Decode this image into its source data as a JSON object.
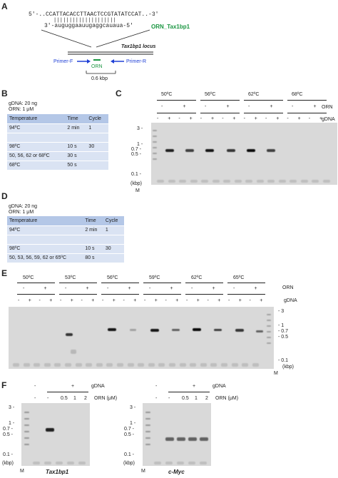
{
  "panels": {
    "A": "A",
    "B": "B",
    "C": "C",
    "D": "D",
    "E": "E",
    "F": "F"
  },
  "panelA": {
    "dna_top": "5'-..CCATTACACCTTAACTCCGTATATCCAT..-3'",
    "bars": "||||||||||||||||||||",
    "rna_bottom": "3'-auguggaauugaggcauaua-5'",
    "orn_label": "ORN_Tax1bp1",
    "locus_label": "Tax1bp1 locus",
    "primer_f": "Primer-F",
    "primer_r": "Primer-R",
    "orn": "ORN",
    "size": "0.6 kbp",
    "colors": {
      "orn": "#1a9641",
      "primer": "#1f3fd6"
    }
  },
  "panelB": {
    "cond1": "gDNA: 20 ng",
    "cond2": "ORN: 1 μM",
    "header": [
      "Temperature",
      "Time",
      "Cycle"
    ],
    "rows": [
      [
        "94ºC",
        "2 min",
        "1"
      ],
      [
        "",
        "",
        " "
      ],
      [
        "98ºC",
        "10 s",
        "30"
      ],
      [
        "50, 56, 62 or 68ºC",
        "30 s",
        ""
      ],
      [
        "68ºC",
        "50 s",
        ""
      ]
    ]
  },
  "panelC": {
    "temps": [
      "50ºC",
      "56ºC",
      "62ºC",
      "68ºC"
    ],
    "orn_label": "ORN",
    "gdna_label": "gDNA",
    "orn_signs": [
      "-",
      "+",
      "-",
      "+",
      "-",
      "+",
      "-",
      "+"
    ],
    "gdna_signs": [
      "-",
      "+",
      "-",
      "+",
      "-",
      "+",
      "-",
      "+",
      "-",
      "+",
      "-",
      "+",
      "-",
      "+",
      "-",
      "+"
    ],
    "ladder": [
      "3 -",
      "1 -",
      "0.7 -",
      "0.5 -",
      "0.1 -",
      "(kbp)"
    ],
    "m": "M"
  },
  "panelD": {
    "cond1": "gDNA: 20 ng",
    "cond2": "ORN: 1 μM",
    "header": [
      "Temperature",
      "Time",
      "Cycle"
    ],
    "rows": [
      [
        "94ºC",
        "2 min",
        "1"
      ],
      [
        "",
        "",
        ""
      ],
      [
        "98ºC",
        "10 s",
        "30"
      ],
      [
        "50, 53, 56, 59, 62 or 65ºC",
        "80 s",
        ""
      ]
    ]
  },
  "panelE": {
    "temps": [
      "50ºC",
      "53ºC",
      "56ºC",
      "59ºC",
      "62ºC",
      "65ºC"
    ],
    "orn_label": "ORN",
    "gdna_label": "gDNA",
    "orn_signs": [
      "-",
      "+",
      "-",
      "+",
      "-",
      "+",
      "-",
      "+",
      "-",
      "+",
      "-",
      "+"
    ],
    "gdna_signs": [
      "-",
      "+",
      "-",
      "+",
      "-",
      "+",
      "-",
      "+",
      "-",
      "+",
      "-",
      "+",
      "-",
      "+",
      "-",
      "+",
      "-",
      "+",
      "-",
      "+",
      "-",
      "+",
      "-",
      "+"
    ],
    "ladder": [
      "- 3",
      "- 1",
      "- 0.7",
      "- 0.5",
      "- 0.1",
      "(kbp)"
    ],
    "m": "M"
  },
  "panelF": {
    "gdna_signs_left": [
      "-",
      "+"
    ],
    "gdna_label": "gDNA",
    "orn_values": [
      "-",
      "-",
      "0.5",
      "1",
      "2"
    ],
    "orn_label": "ORN (μM)",
    "ladder": [
      "3 -",
      "1 -",
      "0.7 -",
      "0.5 -",
      "0.1 -",
      "(kbp)"
    ],
    "m": "M",
    "gene_left": "Tax1bp1",
    "gene_right": "c-Myc"
  }
}
